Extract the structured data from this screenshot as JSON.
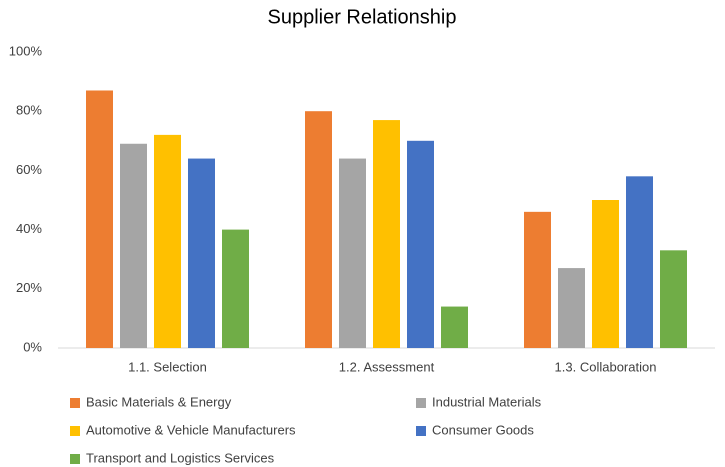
{
  "chart_data": {
    "type": "bar",
    "title": "Supplier Relationship",
    "categories": [
      "1.1. Selection",
      "1.2. Assessment",
      "1.3. Collaboration"
    ],
    "series": [
      {
        "name": "Basic Materials & Energy",
        "color": "#ed7d31",
        "values": [
          87,
          80,
          46
        ]
      },
      {
        "name": "Industrial Materials",
        "color": "#a5a5a5",
        "values": [
          69,
          64,
          27
        ]
      },
      {
        "name": "Automotive & Vehicle Manufacturers",
        "color": "#ffc000",
        "values": [
          72,
          77,
          50
        ]
      },
      {
        "name": "Consumer Goods",
        "color": "#4472c4",
        "values": [
          64,
          70,
          58
        ]
      },
      {
        "name": "Transport and Logistics Services",
        "color": "#70ad47",
        "values": [
          40,
          14,
          33
        ]
      }
    ],
    "ylim": [
      0,
      100
    ],
    "yticks": [
      {
        "value": 0,
        "label": "0%"
      },
      {
        "value": 20,
        "label": "20%"
      },
      {
        "value": 40,
        "label": "40%"
      },
      {
        "value": 60,
        "label": "60%"
      },
      {
        "value": 80,
        "label": "80%"
      },
      {
        "value": 100,
        "label": "100%"
      }
    ],
    "grid": false,
    "legend": "bottom"
  }
}
